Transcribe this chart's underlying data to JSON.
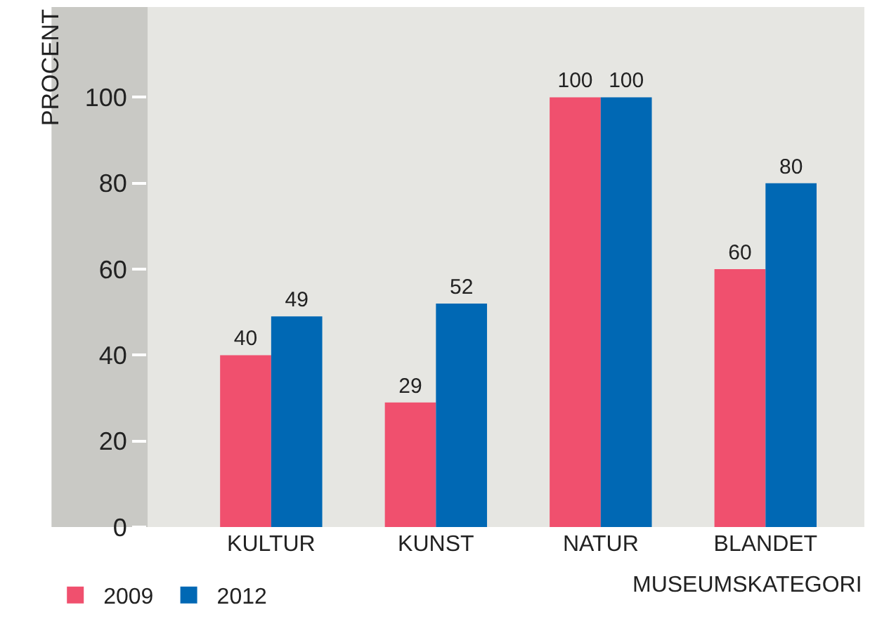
{
  "chart_data": {
    "type": "bar",
    "ylabel": "PROCENT",
    "xlabel": "MUSEUMSKATEGORI",
    "categories": [
      "KULTUR",
      "KUNST",
      "NATUR",
      "BLANDET"
    ],
    "series": [
      {
        "name": "2009",
        "color": "#f0506e",
        "values": [
          40,
          29,
          100,
          60
        ]
      },
      {
        "name": "2012",
        "color": "#0068b4",
        "values": [
          49,
          52,
          100,
          80
        ]
      }
    ],
    "ylim": [
      0,
      121
    ],
    "yticks": [
      0,
      20,
      40,
      60,
      80,
      100
    ],
    "grid": false,
    "legend": "bottom left",
    "data_labels": true
  }
}
